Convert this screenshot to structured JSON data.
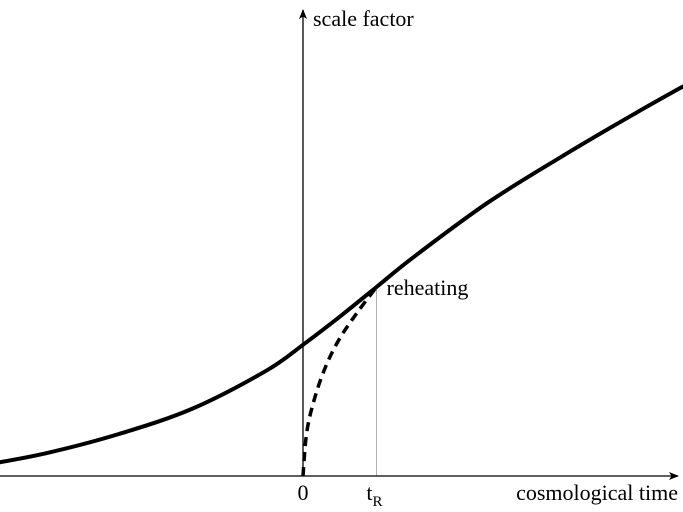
{
  "chart_data": {
    "type": "line",
    "title": "",
    "xlabel": "cosmological time",
    "ylabel": "scale factor",
    "origin_label": "0",
    "tick": {
      "label_main": "t",
      "label_sub": "R",
      "x": 1
    },
    "annotation": {
      "text": "reheating",
      "x": 1
    },
    "xlim": [
      -4.4,
      5.6
    ],
    "ylim": [
      -0.2,
      7.8
    ],
    "grid": false,
    "legend": "none",
    "series": [
      {
        "style": "solid",
        "x": [
          -4.35,
          -3.5,
          -2.5,
          -1.5,
          -0.5,
          0,
          0.5,
          1,
          1.5,
          2.5,
          3.5,
          4.5,
          5.35
        ],
        "y": [
          0.2,
          0.42,
          0.78,
          1.25,
          1.95,
          2.43,
          2.95,
          3.5,
          4.05,
          5.05,
          5.9,
          6.7,
          7.35
        ]
      },
      {
        "style": "dashed",
        "x": [
          0,
          0.05,
          0.15,
          0.3,
          0.5,
          0.75,
          1
        ],
        "y": [
          0,
          0.8,
          1.4,
          2.0,
          2.55,
          3.05,
          3.5
        ]
      }
    ],
    "colors": {
      "curve": "#000000",
      "axis": "#000000",
      "guide": "#b0b0b0"
    }
  }
}
